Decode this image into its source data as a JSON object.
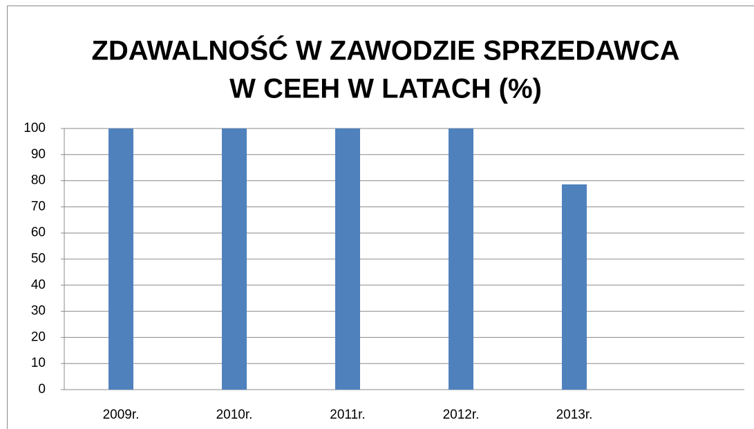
{
  "chart_data": {
    "type": "bar",
    "title": [
      "ZDAWALNOŚĆ W ZAWODZIE SPRZEDAWCA",
      "W CEEH W LATACH (%)"
    ],
    "categories": [
      "2009r.",
      "2010r.",
      "2011r.",
      "2012r.",
      "2013r.",
      null
    ],
    "values": [
      100,
      100,
      100,
      100,
      78.6,
      null
    ],
    "color": "#4f81bd",
    "ylim": [
      0,
      100
    ],
    "yticks": [
      0,
      10,
      20,
      30,
      40,
      50,
      60,
      70,
      80,
      90,
      100
    ],
    "grid": true
  }
}
